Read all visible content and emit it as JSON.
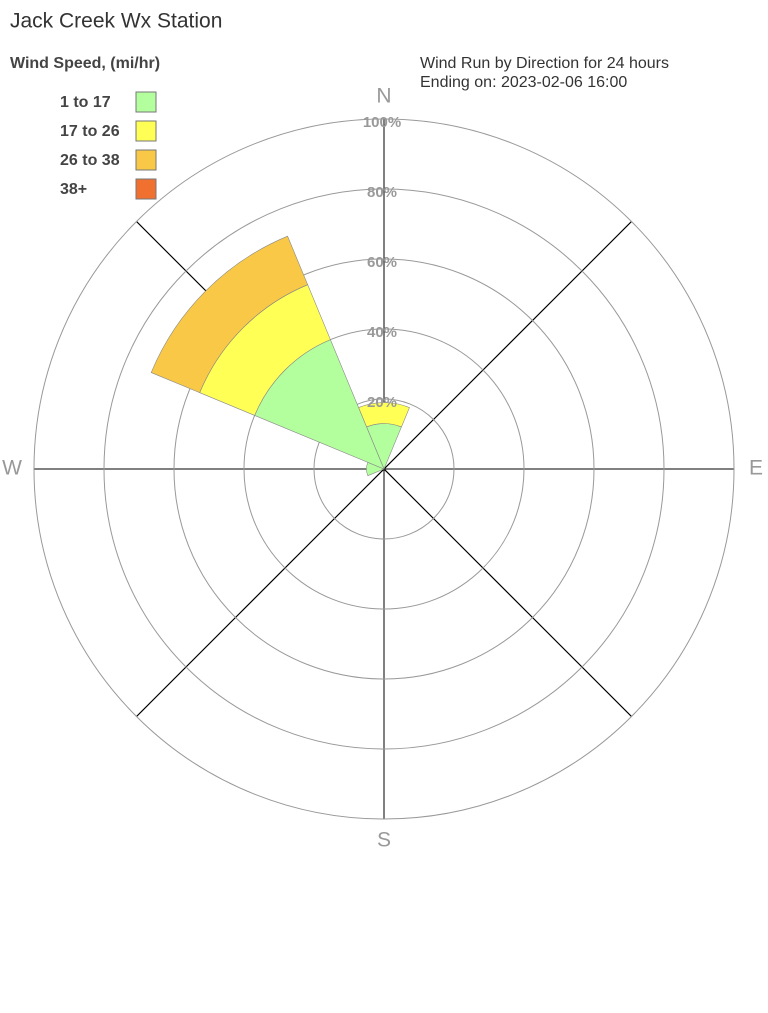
{
  "chart_data": {
    "type": "windrose",
    "title": "Jack Creek Wx Station",
    "legend_title": "Wind Speed, (mi/hr)",
    "subtitle": [
      "Wind Run by Direction for 24 hours",
      "Ending on: 2023-02-06 16:00"
    ],
    "categories": [
      "N",
      null,
      "E",
      null,
      "S",
      null,
      "W",
      null
    ],
    "series": [
      {
        "name": "1 to 17",
        "color": "#b3ff9e",
        "values": [
          13,
          0,
          0,
          0,
          0,
          0,
          5,
          40
        ]
      },
      {
        "name": "17 to 26",
        "color": "#ffff55",
        "values": [
          6,
          0,
          0,
          0,
          0,
          0,
          0,
          17
        ]
      },
      {
        "name": "26 to 38",
        "color": "#f8c846",
        "values": [
          0,
          0,
          0,
          0,
          0,
          0,
          0,
          15
        ]
      },
      {
        "name": "38+",
        "color": "#f07030",
        "values": [
          0,
          0,
          0,
          0,
          0,
          0,
          0,
          0
        ]
      }
    ],
    "rlim": [
      0,
      100
    ],
    "rticks": [
      {
        "value": 20,
        "label": "20%"
      },
      {
        "value": 40,
        "label": "40%"
      },
      {
        "value": 60,
        "label": "60%"
      },
      {
        "value": 80,
        "label": "80%"
      },
      {
        "value": 100,
        "label": "100%"
      }
    ]
  }
}
